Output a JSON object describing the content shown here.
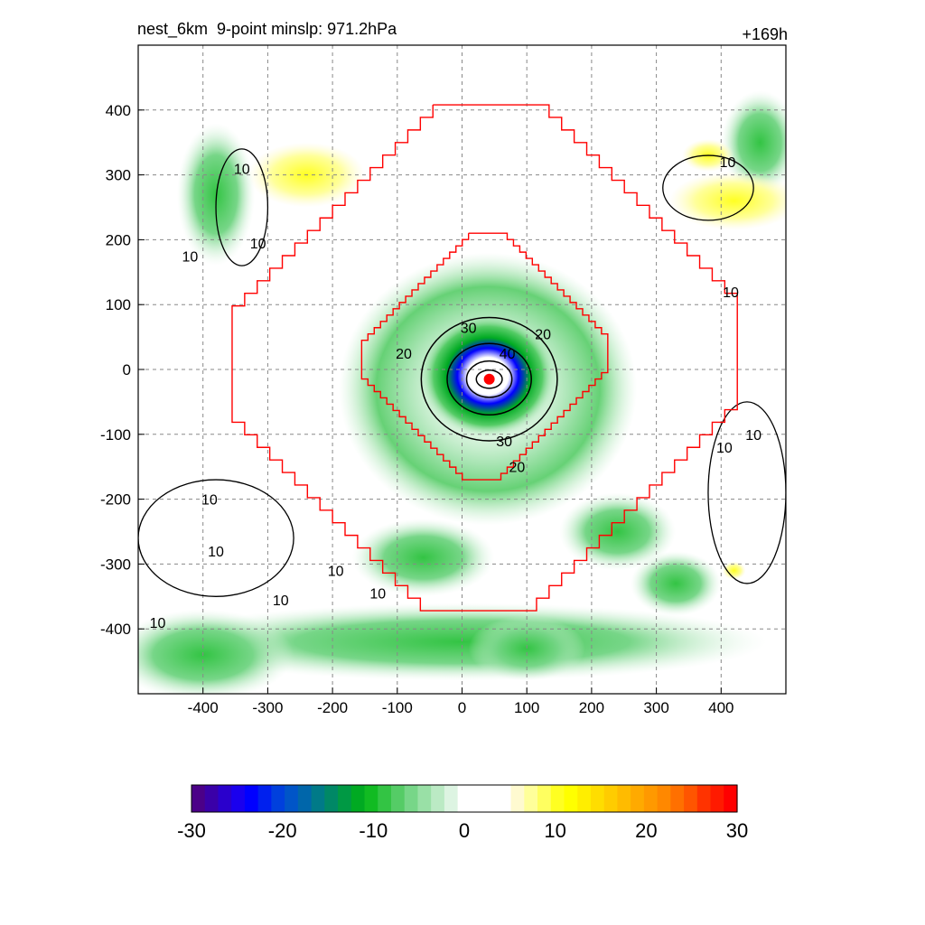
{
  "title": "nest_6km  9-point minslp: 971.2hPa",
  "time_label": "+169h",
  "chart_data": {
    "type": "heatmap",
    "title": "nest_6km  9-point minslp: 971.2hPa",
    "xlim": [
      -500,
      500
    ],
    "ylim": [
      -500,
      500
    ],
    "xticks": [
      "-400",
      "-300",
      "-200",
      "-100",
      "0",
      "100",
      "200",
      "300",
      "400"
    ],
    "yticks": [
      "400",
      "300",
      "200",
      "100",
      "0",
      "-100",
      "-200",
      "-300",
      "-400"
    ],
    "xtick_values": [
      -400,
      -300,
      -200,
      -100,
      0,
      100,
      200,
      300,
      400
    ],
    "ytick_values": [
      400,
      300,
      200,
      100,
      0,
      -100,
      -200,
      -300,
      -400
    ],
    "grid": true,
    "storm_center": {
      "x": 42,
      "y": -15
    },
    "contour_levels": [
      10,
      20,
      30,
      40
    ],
    "contour_labels": [
      {
        "text": "10",
        "x": -340,
        "y": 310
      },
      {
        "text": "10",
        "x": -420,
        "y": 175
      },
      {
        "text": "10",
        "x": -315,
        "y": 195
      },
      {
        "text": "30",
        "x": 10,
        "y": 65
      },
      {
        "text": "20",
        "x": 125,
        "y": 55
      },
      {
        "text": "20",
        "x": -90,
        "y": 25
      },
      {
        "text": "40",
        "x": 70,
        "y": 25
      },
      {
        "text": "30",
        "x": 65,
        "y": -110
      },
      {
        "text": "20",
        "x": 85,
        "y": -150
      },
      {
        "text": "10",
        "x": -390,
        "y": -200
      },
      {
        "text": "10",
        "x": -380,
        "y": -280
      },
      {
        "text": "10",
        "x": -195,
        "y": -310
      },
      {
        "text": "10",
        "x": -130,
        "y": -345
      },
      {
        "text": "10",
        "x": -280,
        "y": -355
      },
      {
        "text": "10",
        "x": -470,
        "y": -390
      },
      {
        "text": "10",
        "x": 450,
        "y": -100
      },
      {
        "text": "10",
        "x": 405,
        "y": -120
      },
      {
        "text": "10",
        "x": 415,
        "y": 120
      },
      {
        "text": "10",
        "x": 410,
        "y": 320
      }
    ],
    "colorbar": {
      "min": -30,
      "max": 30,
      "ticks": [
        "-30",
        "-20",
        "-10",
        "0",
        "10",
        "20",
        "30"
      ],
      "tick_values": [
        -30,
        -20,
        -10,
        0,
        10,
        20,
        30
      ],
      "colors": [
        "#4b0088",
        "#3a00a8",
        "#2a00cc",
        "#1a00ee",
        "#0000ff",
        "#0020ee",
        "#0040dd",
        "#0055c8",
        "#0066aa",
        "#007a88",
        "#008866",
        "#009944",
        "#00aa22",
        "#11bb22",
        "#33c444",
        "#55cc66",
        "#77d688",
        "#99e0a6",
        "#bbeac4",
        "#ddf4e2",
        "#ffffff",
        "#ffffff",
        "#ffffff",
        "#ffffff",
        "#fffad0",
        "#ffff9a",
        "#ffff60",
        "#ffff22",
        "#ffff00",
        "#ffee00",
        "#ffdd00",
        "#ffcc00",
        "#ffbb00",
        "#ffaa00",
        "#ff9900",
        "#ff8800",
        "#ff7000",
        "#ff5500",
        "#ff3300",
        "#ff1a00",
        "#ff0000"
      ]
    }
  }
}
